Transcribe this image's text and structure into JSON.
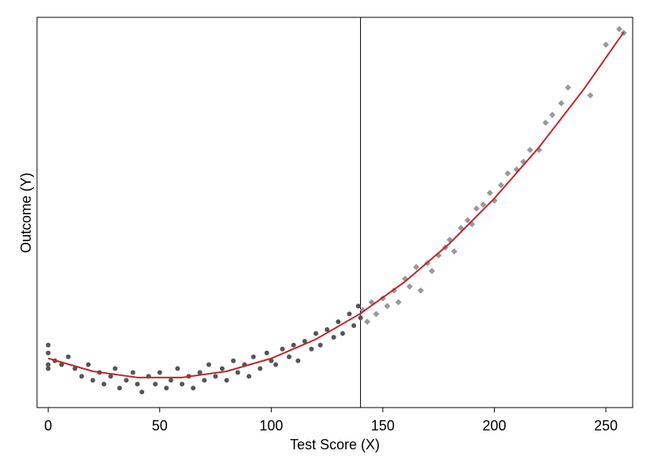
{
  "chart_data": {
    "type": "scatter",
    "x_label": "Test Score (X)",
    "y_label": "Outcome (Y)",
    "xlim": [
      -5,
      262
    ],
    "ylim": [
      0,
      100
    ],
    "xticks": [
      0,
      50,
      100,
      150,
      200,
      250
    ],
    "cutoff": 140,
    "series": [
      {
        "color": "#555555",
        "marker": "circle",
        "x": [
          0,
          0,
          0,
          0,
          3,
          6,
          9,
          12,
          15,
          18,
          20,
          23,
          25,
          28,
          30,
          32,
          35,
          38,
          40,
          42,
          45,
          48,
          50,
          53,
          55,
          58,
          60,
          63,
          65,
          68,
          70,
          72,
          75,
          78,
          80,
          83,
          85,
          88,
          90,
          92,
          95,
          98,
          100,
          102,
          105,
          108,
          110,
          112,
          115,
          118,
          120,
          122,
          125,
          128,
          130,
          132,
          135,
          137,
          139,
          140
        ],
        "values": [
          14,
          11,
          16,
          10,
          12,
          11,
          13,
          10,
          8,
          11,
          7,
          9,
          6,
          8,
          10,
          5,
          7,
          9,
          6,
          4,
          8,
          6,
          9,
          5,
          7,
          10,
          6,
          8,
          5,
          9,
          7,
          11,
          8,
          10,
          7,
          12,
          9,
          11,
          8,
          13,
          10,
          14,
          12,
          11,
          15,
          13,
          16,
          12,
          17,
          15,
          19,
          16,
          20,
          18,
          22,
          19,
          24,
          21,
          26,
          23
        ]
      },
      {
        "color": "#999999",
        "marker": "diamond",
        "x": [
          141,
          143,
          145,
          147,
          150,
          152,
          155,
          157,
          160,
          162,
          165,
          167,
          170,
          172,
          175,
          178,
          180,
          182,
          185,
          188,
          190,
          192,
          195,
          198,
          200,
          203,
          206,
          210,
          213,
          216,
          220,
          223,
          226,
          230,
          233,
          243,
          250,
          256,
          258
        ],
        "values": [
          25,
          22,
          27,
          24,
          28,
          26,
          30,
          27,
          33,
          31,
          36,
          30,
          37,
          35,
          39,
          41,
          43,
          40,
          46,
          48,
          47,
          51,
          52,
          55,
          53,
          57,
          60,
          61,
          63,
          66,
          66,
          73,
          75,
          78,
          82,
          80,
          93,
          97,
          96
        ]
      },
      {
        "color": "#c0262b",
        "type": "line",
        "x": [
          0,
          20,
          40,
          60,
          80,
          100,
          120,
          140,
          160,
          180,
          200,
          220,
          240,
          258
        ],
        "values": [
          12.6,
          9.3,
          7.7,
          7.7,
          9.3,
          12.6,
          17.5,
          24.1,
          32.3,
          42.1,
          53.6,
          66.7,
          81.5,
          96.2
        ]
      }
    ]
  }
}
